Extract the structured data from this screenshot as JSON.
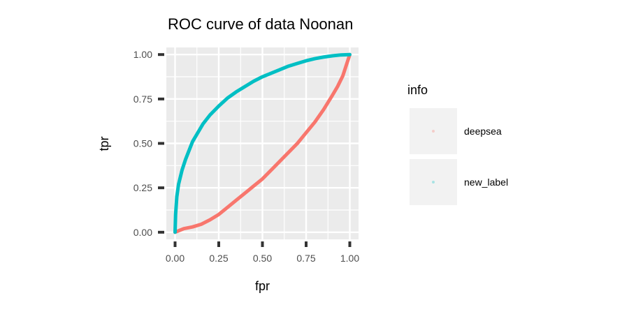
{
  "chart_data": {
    "type": "line",
    "title": "ROC curve of data Noonan",
    "xlabel": "fpr",
    "ylabel": "tpr",
    "xlim": [
      -0.05,
      1.05
    ],
    "ylim": [
      -0.04,
      1.04
    ],
    "x_ticks": [
      "0.00",
      "0.25",
      "0.50",
      "0.75",
      "1.00"
    ],
    "y_ticks": [
      "0.00",
      "0.25",
      "0.50",
      "0.75",
      "1.00"
    ],
    "grid": true,
    "legend": {
      "title": "info",
      "position": "right"
    },
    "series": [
      {
        "name": "deepsea",
        "color": "#F8766D",
        "x": [
          0.0,
          0.05,
          0.1,
          0.15,
          0.2,
          0.25,
          0.3,
          0.35,
          0.4,
          0.45,
          0.5,
          0.55,
          0.6,
          0.65,
          0.7,
          0.75,
          0.8,
          0.85,
          0.9,
          0.93,
          0.96,
          0.98,
          1.0
        ],
        "y": [
          0.0,
          0.02,
          0.03,
          0.045,
          0.07,
          0.1,
          0.14,
          0.18,
          0.22,
          0.26,
          0.3,
          0.35,
          0.4,
          0.45,
          0.5,
          0.56,
          0.62,
          0.69,
          0.77,
          0.82,
          0.88,
          0.94,
          1.0
        ]
      },
      {
        "name": "new_label",
        "color": "#00BFC4",
        "x": [
          0.0,
          0.003,
          0.01,
          0.02,
          0.04,
          0.06,
          0.08,
          0.1,
          0.13,
          0.16,
          0.2,
          0.25,
          0.3,
          0.35,
          0.4,
          0.45,
          0.5,
          0.55,
          0.6,
          0.65,
          0.7,
          0.75,
          0.8,
          0.85,
          0.9,
          0.95,
          1.0
        ],
        "y": [
          0.0,
          0.1,
          0.2,
          0.27,
          0.35,
          0.41,
          0.46,
          0.51,
          0.56,
          0.61,
          0.66,
          0.71,
          0.755,
          0.79,
          0.82,
          0.85,
          0.875,
          0.895,
          0.915,
          0.935,
          0.95,
          0.965,
          0.977,
          0.986,
          0.993,
          0.998,
          1.0
        ]
      }
    ]
  }
}
